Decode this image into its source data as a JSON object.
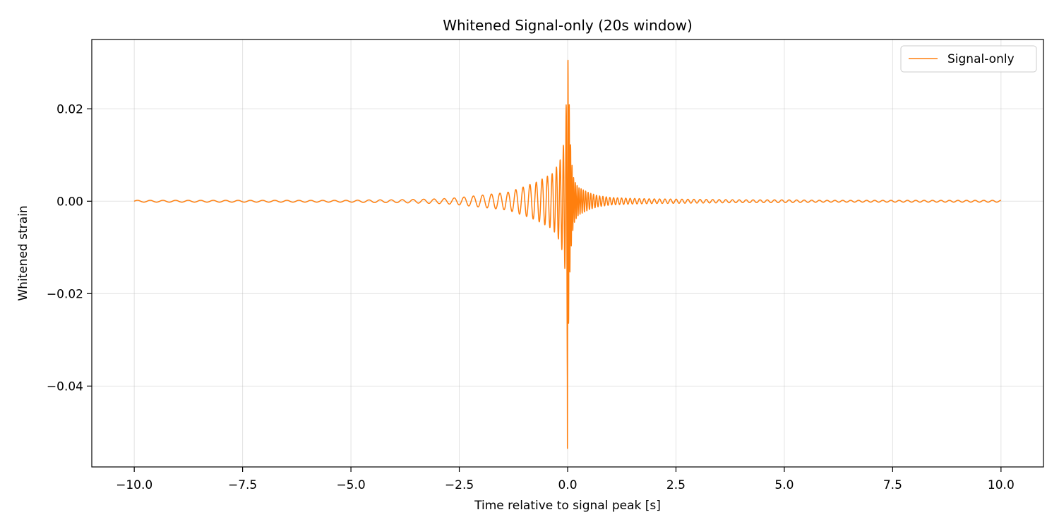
{
  "chart_data": {
    "type": "line",
    "title": "Whitened Signal-only (20s window)",
    "xlabel": "Time relative to signal peak [s]",
    "ylabel": "Whitened strain",
    "xlim": [
      -10.98,
      10.98
    ],
    "ylim": [
      -0.0575,
      0.035
    ],
    "xticks": [
      -10.0,
      -7.5,
      -5.0,
      -2.5,
      0.0,
      2.5,
      5.0,
      7.5,
      10.0
    ],
    "xtick_labels": [
      "−10.0",
      "−7.5",
      "−5.0",
      "−2.5",
      "0.0",
      "2.5",
      "5.0",
      "7.5",
      "10.0"
    ],
    "yticks": [
      0.02,
      0.0,
      -0.02,
      -0.04
    ],
    "ytick_labels": [
      "0.02",
      "0.00",
      "−0.02",
      "−0.04"
    ],
    "grid": true,
    "legend_position": "upper right",
    "series": [
      {
        "name": "Signal-only",
        "color": "#ff7f0e",
        "x": [
          -10.0,
          -9.0,
          -8.0,
          -7.0,
          -6.0,
          -5.0,
          -4.5,
          -4.0,
          -3.5,
          -3.0,
          -2.75,
          -2.5,
          -2.3,
          -2.1,
          -1.9,
          -1.7,
          -1.5,
          -1.35,
          -1.2,
          -1.05,
          -0.95,
          -0.85,
          -0.75,
          -0.65,
          -0.55,
          -0.45,
          -0.35,
          -0.25,
          -0.17,
          -0.12,
          -0.08,
          -0.05,
          -0.03,
          -0.02,
          -0.01,
          0.0,
          0.01,
          0.02,
          0.03,
          0.04,
          0.05,
          0.07,
          0.09,
          0.11,
          0.14,
          0.18,
          0.25,
          0.35,
          0.5,
          0.7,
          1.0,
          1.5,
          2.0,
          3.0,
          4.0,
          5.0,
          6.0,
          7.0,
          8.0,
          9.0,
          10.0
        ],
        "y_envelope": [
          0.0002,
          0.0002,
          0.0002,
          0.0002,
          0.0002,
          0.0002,
          0.0003,
          0.0003,
          0.0004,
          0.0005,
          0.0006,
          0.0008,
          0.001,
          0.0012,
          0.0014,
          0.0016,
          0.0018,
          0.002,
          0.0025,
          0.003,
          0.0033,
          0.0037,
          0.004,
          0.0045,
          0.005,
          0.0055,
          0.006,
          0.0075,
          0.009,
          0.011,
          0.013,
          0.016,
          0.022,
          0.028,
          0.034,
          0.048,
          0.03,
          0.028,
          0.024,
          0.02,
          0.016,
          0.012,
          0.009,
          0.007,
          0.005,
          0.004,
          0.003,
          0.0025,
          0.0018,
          0.0012,
          0.0008,
          0.0006,
          0.0005,
          0.0004,
          0.0003,
          0.0003,
          0.0002,
          0.0002,
          0.0002,
          0.0002,
          0.0002
        ],
        "peak_max": 0.0305,
        "peak_min": -0.0535
      }
    ]
  }
}
